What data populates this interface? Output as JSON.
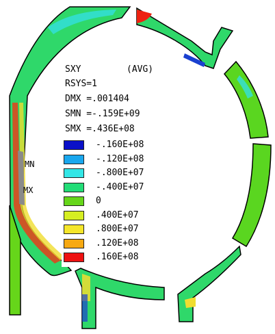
{
  "plot": {
    "item": "SXY",
    "avg": "(AVG)",
    "rsys": "RSYS=1",
    "dmx": "DMX =.001404",
    "smn": "SMN =-.159E+09",
    "smx": "SMX =.436E+08"
  },
  "legend": [
    {
      "label": "-.160E+08",
      "color": "#0a10c8"
    },
    {
      "label": "-.120E+08",
      "color": "#19a7ee"
    },
    {
      "label": "-.800E+07",
      "color": "#33e6e6"
    },
    {
      "label": "-.400E+07",
      "color": "#22dd77"
    },
    {
      "label": "0",
      "color": "#66d61a"
    },
    {
      "label": ".400E+07",
      "color": "#d6ee22"
    },
    {
      "label": ".800E+07",
      "color": "#f5e62a"
    },
    {
      "label": ".120E+08",
      "color": "#f7a912"
    },
    {
      "label": ".160E+08",
      "color": "#ee1111"
    }
  ],
  "markers": {
    "min": "MN",
    "max": "MX"
  }
}
